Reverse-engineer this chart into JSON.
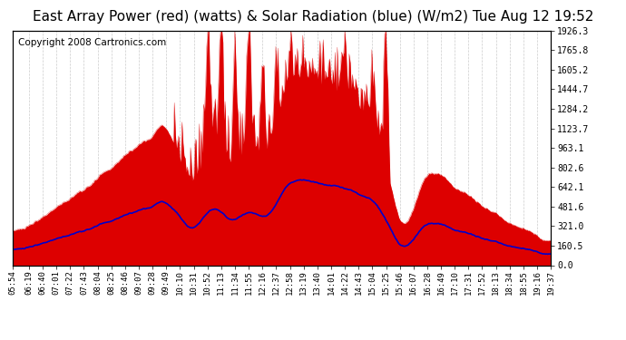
{
  "title": "East Array Power (red) (watts) & Solar Radiation (blue) (W/m2) Tue Aug 12 19:52",
  "copyright": "Copyright 2008 Cartronics.com",
  "background_color": "#ffffff",
  "plot_bg_color": "#ffffff",
  "grid_color": "#cccccc",
  "ytick_labels": [
    "0.0",
    "160.5",
    "321.0",
    "481.6",
    "642.1",
    "802.6",
    "963.1",
    "1123.7",
    "1284.2",
    "1444.7",
    "1605.2",
    "1765.8",
    "1926.3"
  ],
  "ytick_values": [
    0.0,
    160.5,
    321.0,
    481.6,
    642.1,
    802.6,
    963.1,
    1123.7,
    1284.2,
    1444.7,
    1605.2,
    1765.8,
    1926.3
  ],
  "ymax": 1926.3,
  "ymin": 0.0,
  "xtick_labels": [
    "05:54",
    "06:19",
    "06:40",
    "07:01",
    "07:22",
    "07:43",
    "08:04",
    "08:25",
    "08:46",
    "09:07",
    "09:28",
    "09:49",
    "10:10",
    "10:31",
    "10:52",
    "11:13",
    "11:34",
    "11:55",
    "12:16",
    "12:37",
    "12:58",
    "13:19",
    "13:40",
    "14:01",
    "14:22",
    "14:43",
    "15:04",
    "15:25",
    "15:46",
    "16:07",
    "16:28",
    "16:49",
    "17:10",
    "17:31",
    "17:52",
    "18:13",
    "18:34",
    "18:55",
    "19:16",
    "19:37"
  ],
  "red_color": "#dd0000",
  "blue_color": "#0000cc",
  "title_fontsize": 11,
  "copyright_fontsize": 7.5
}
